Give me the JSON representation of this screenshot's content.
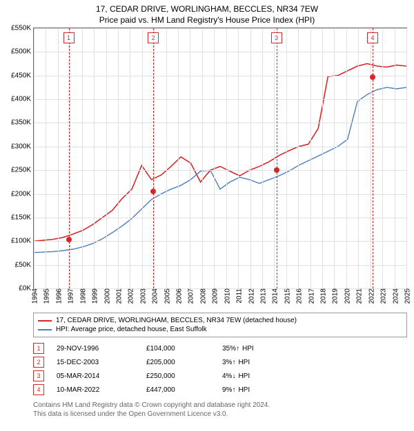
{
  "title": "17, CEDAR DRIVE, WORLINGHAM, BECCLES, NR34 7EW",
  "subtitle": "Price paid vs. HM Land Registry's House Price Index (HPI)",
  "chart": {
    "type": "line",
    "background_color": "#ffffff",
    "grid_color": "#e0e0e0",
    "border_color": "#666666",
    "x_years": [
      1994,
      1995,
      1996,
      1997,
      1998,
      1999,
      2000,
      2001,
      2002,
      2003,
      2004,
      2005,
      2006,
      2007,
      2008,
      2009,
      2010,
      2011,
      2012,
      2013,
      2014,
      2015,
      2016,
      2017,
      2018,
      2019,
      2020,
      2021,
      2022,
      2023,
      2024,
      2025
    ],
    "xlim_index": [
      0,
      31
    ],
    "y_ticks": [
      0,
      50,
      100,
      150,
      200,
      250,
      300,
      350,
      400,
      450,
      500,
      550
    ],
    "y_tick_prefix": "£",
    "y_tick_suffix": "K",
    "ylim": [
      0,
      550
    ],
    "tick_fontsize": 10,
    "series": [
      {
        "name": "price_paid",
        "label": "17, CEDAR DRIVE, WORLINGHAM, BECCLES, NR34 7EW (detached house)",
        "color": "#d62728",
        "width": 1.6,
        "y": [
          100,
          102,
          104,
          108,
          115,
          123,
          135,
          150,
          165,
          190,
          210,
          260,
          230,
          240,
          258,
          278,
          265,
          225,
          250,
          258,
          248,
          238,
          250,
          258,
          268,
          281,
          291,
          300,
          305,
          338,
          448,
          450,
          460,
          470,
          475,
          470,
          468,
          472,
          470
        ]
      },
      {
        "name": "hpi",
        "label": "HPI: Average price, detached house, East Suffolk",
        "color": "#4a7ebb",
        "width": 1.4,
        "y": [
          76,
          77,
          78,
          80,
          83,
          88,
          95,
          105,
          118,
          132,
          148,
          168,
          188,
          200,
          210,
          218,
          230,
          248,
          250,
          210,
          225,
          235,
          230,
          222,
          230,
          238,
          248,
          260,
          270,
          280,
          290,
          300,
          315,
          395,
          410,
          420,
          425,
          422,
          425
        ]
      }
    ],
    "events": [
      {
        "num": "1",
        "year_index": 2.9,
        "color": "#d62728",
        "date": "29-NOV-1996",
        "price": "£104,000",
        "pct": "35%",
        "arrow": "↑",
        "hpi_label": "HPI",
        "dot_y": 104
      },
      {
        "num": "2",
        "year_index": 9.95,
        "color": "#d62728",
        "date": "15-DEC-2003",
        "price": "£205,000",
        "pct": "3%",
        "arrow": "↑",
        "hpi_label": "HPI",
        "dot_y": 205
      },
      {
        "num": "3",
        "year_index": 20.18,
        "color": "#d62728",
        "date": "05-MAR-2014",
        "price": "£250,000",
        "pct": "4%",
        "arrow": "↓",
        "hpi_label": "HPI",
        "dot_y": 250
      },
      {
        "num": "4",
        "year_index": 28.19,
        "color": "#d62728",
        "date": "10-MAR-2022",
        "price": "£447,000",
        "pct": "9%",
        "arrow": "↑",
        "hpi_label": "HPI",
        "dot_y": 447
      }
    ]
  },
  "legend_border": "#999999",
  "footnote1": "Contains HM Land Registry data © Crown copyright and database right 2024.",
  "footnote2": "This data is licensed under the Open Government Licence v3.0."
}
